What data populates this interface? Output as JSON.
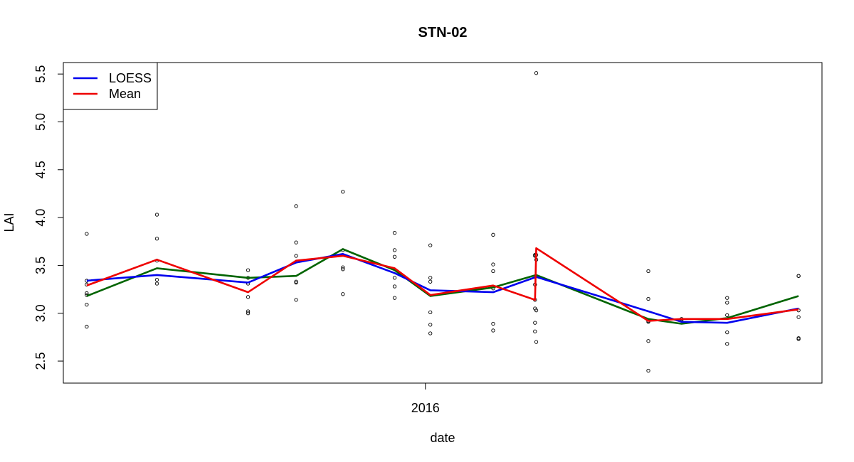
{
  "chart_data": {
    "type": "line",
    "title": "STN-02",
    "xlabel": "date",
    "ylabel": "LAI",
    "x_ticks": [
      "2016"
    ],
    "y_ticks": [
      "2.5",
      "3.0",
      "3.5",
      "4.0",
      "4.5",
      "5.0",
      "5.5"
    ],
    "ylim": [
      2.27,
      5.62
    ],
    "xlim": [
      "2015-03-13",
      "2016-11-18"
    ],
    "legend": {
      "position": "top-left",
      "entries": [
        {
          "name": "LOESS",
          "color": "#0000ee"
        },
        {
          "name": "Mean",
          "color": "#ee0000"
        }
      ]
    },
    "series": [
      {
        "name": "LOESS",
        "color": "#0000ee",
        "x": [
          "2015-04-01",
          "2015-05-28",
          "2015-08-10",
          "2015-09-18",
          "2015-10-26",
          "2015-12-07",
          "2016-01-05",
          "2016-02-25",
          "2016-03-31",
          "2016-06-30",
          "2016-07-27",
          "2016-09-02",
          "2016-10-30"
        ],
        "y": [
          3.34,
          3.4,
          3.32,
          3.53,
          3.62,
          3.42,
          3.24,
          3.22,
          3.38,
          3.02,
          2.91,
          2.9,
          3.05
        ]
      },
      {
        "name": "Mean",
        "color": "#ee0000",
        "x": [
          "2015-04-01",
          "2015-05-28",
          "2015-08-10",
          "2015-09-18",
          "2015-10-26",
          "2015-12-07",
          "2016-01-05",
          "2016-02-25",
          "2016-03-30",
          "2016-03-31",
          "2016-06-30",
          "2016-07-27",
          "2016-09-02",
          "2016-10-30"
        ],
        "y": [
          3.29,
          3.56,
          3.22,
          3.55,
          3.6,
          3.47,
          3.19,
          3.29,
          3.14,
          3.68,
          2.92,
          2.94,
          2.94,
          3.04
        ]
      },
      {
        "name": "",
        "color": "#006400",
        "x": [
          "2015-04-01",
          "2015-05-28",
          "2015-08-10",
          "2015-09-18",
          "2015-10-26",
          "2015-12-07",
          "2016-01-05",
          "2016-02-25",
          "2016-03-31",
          "2016-06-30",
          "2016-07-27",
          "2016-09-02",
          "2016-10-30"
        ],
        "y": [
          3.18,
          3.47,
          3.37,
          3.39,
          3.67,
          3.45,
          3.18,
          3.27,
          3.4,
          2.94,
          2.89,
          2.95,
          3.18
        ]
      }
    ],
    "points": {
      "x": [
        "2015-04-01",
        "2015-04-01",
        "2015-04-01",
        "2015-04-01",
        "2015-04-01",
        "2015-04-01",
        "2015-04-01",
        "2015-05-28",
        "2015-05-28",
        "2015-05-28",
        "2015-05-28",
        "2015-05-28",
        "2015-08-10",
        "2015-08-10",
        "2015-08-10",
        "2015-08-10",
        "2015-08-10",
        "2015-08-10",
        "2015-09-18",
        "2015-09-18",
        "2015-09-18",
        "2015-09-18",
        "2015-09-18",
        "2015-09-18",
        "2015-10-26",
        "2015-10-26",
        "2015-10-26",
        "2015-10-26",
        "2015-10-26",
        "2015-12-07",
        "2015-12-07",
        "2015-12-07",
        "2015-12-07",
        "2015-12-07",
        "2015-12-07",
        "2016-01-05",
        "2016-01-05",
        "2016-01-05",
        "2016-01-05",
        "2016-01-05",
        "2016-01-05",
        "2016-02-25",
        "2016-02-25",
        "2016-02-25",
        "2016-02-25",
        "2016-02-25",
        "2016-02-25",
        "2016-03-30",
        "2016-03-30",
        "2016-03-30",
        "2016-03-30",
        "2016-03-30",
        "2016-03-30",
        "2016-03-30",
        "2016-03-31",
        "2016-03-31",
        "2016-03-31",
        "2016-03-31",
        "2016-03-31",
        "2016-06-30",
        "2016-06-30",
        "2016-06-30",
        "2016-06-30",
        "2016-06-30",
        "2016-06-30",
        "2016-07-27",
        "2016-07-27",
        "2016-09-02",
        "2016-09-02",
        "2016-09-02",
        "2016-09-02",
        "2016-09-02",
        "2016-10-30",
        "2016-10-30",
        "2016-10-30",
        "2016-10-30",
        "2016-10-30",
        "2016-10-30"
      ],
      "y": [
        3.83,
        3.34,
        3.3,
        3.21,
        3.19,
        3.09,
        2.86,
        4.03,
        3.78,
        3.55,
        3.35,
        3.31,
        3.45,
        3.37,
        3.31,
        3.17,
        3.02,
        3.0,
        4.12,
        3.74,
        3.6,
        3.33,
        3.32,
        3.14,
        4.27,
        3.66,
        3.48,
        3.46,
        3.2,
        3.84,
        3.66,
        3.59,
        3.37,
        3.28,
        3.16,
        3.71,
        3.37,
        3.33,
        3.01,
        2.88,
        2.79,
        3.82,
        3.51,
        3.44,
        3.26,
        2.89,
        2.82,
        3.6,
        3.3,
        3.14,
        3.05,
        2.9,
        2.81,
        3.61,
        5.51,
        3.61,
        3.56,
        3.03,
        2.7,
        3.44,
        3.15,
        2.92,
        2.91,
        2.71,
        2.4,
        2.94,
        2.93,
        3.16,
        3.11,
        2.98,
        2.8,
        2.68,
        3.39,
        3.39,
        3.03,
        2.96,
        2.74,
        2.73
      ]
    }
  }
}
